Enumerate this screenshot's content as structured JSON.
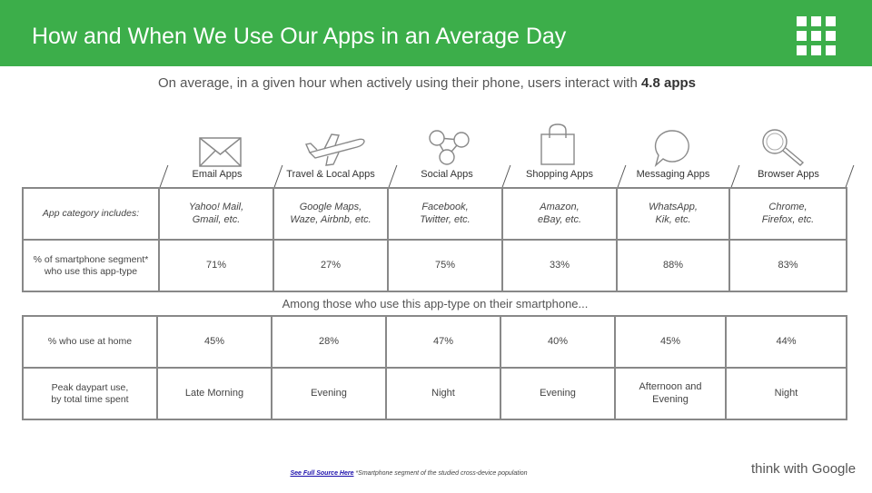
{
  "header": {
    "title": "How and When We Use Our Apps in an Average Day"
  },
  "subtitle": {
    "text": "On average, in a given hour when actively using their phone, users interact with ",
    "highlight": "4.8 apps"
  },
  "categories": [
    {
      "label": "Email Apps",
      "icon": "envelope-icon",
      "includes": "Yahoo! Mail,\nGmail, etc.",
      "smartphone_pct": "71%",
      "home_pct": "45%",
      "peak": "Late Morning"
    },
    {
      "label": "Travel & Local Apps",
      "icon": "airplane-icon",
      "includes": "Google Maps,\nWaze, Airbnb, etc.",
      "smartphone_pct": "27%",
      "home_pct": "28%",
      "peak": "Evening"
    },
    {
      "label": "Social Apps",
      "icon": "share-icon",
      "includes": "Facebook,\nTwitter, etc.",
      "smartphone_pct": "75%",
      "home_pct": "47%",
      "peak": "Night"
    },
    {
      "label": "Shopping  Apps",
      "icon": "shopping-bag-icon",
      "includes": "Amazon,\neBay, etc.",
      "smartphone_pct": "33%",
      "home_pct": "40%",
      "peak": "Evening"
    },
    {
      "label": "Messaging Apps",
      "icon": "speech-bubble-icon",
      "includes": "WhatsApp,\nKik, etc.",
      "smartphone_pct": "88%",
      "home_pct": "45%",
      "peak": "Afternoon and\nEvening"
    },
    {
      "label": "Browser Apps",
      "icon": "magnifier-icon",
      "includes": "Chrome,\nFirefox, etc.",
      "smartphone_pct": "83%",
      "home_pct": "44%",
      "peak": "Night"
    }
  ],
  "rows": {
    "includes": "App category includes:",
    "smartphone": "% of smartphone segment*\nwho use this app-type",
    "home": "% who use at home",
    "peak": "Peak daypart use,\nby total time spent"
  },
  "among": "Among those who use this app-type on their smartphone...",
  "footer": {
    "link": "See Full Source Here",
    "note": " *Smartphone segment of the studied cross-device population"
  },
  "brand": "think with Google"
}
